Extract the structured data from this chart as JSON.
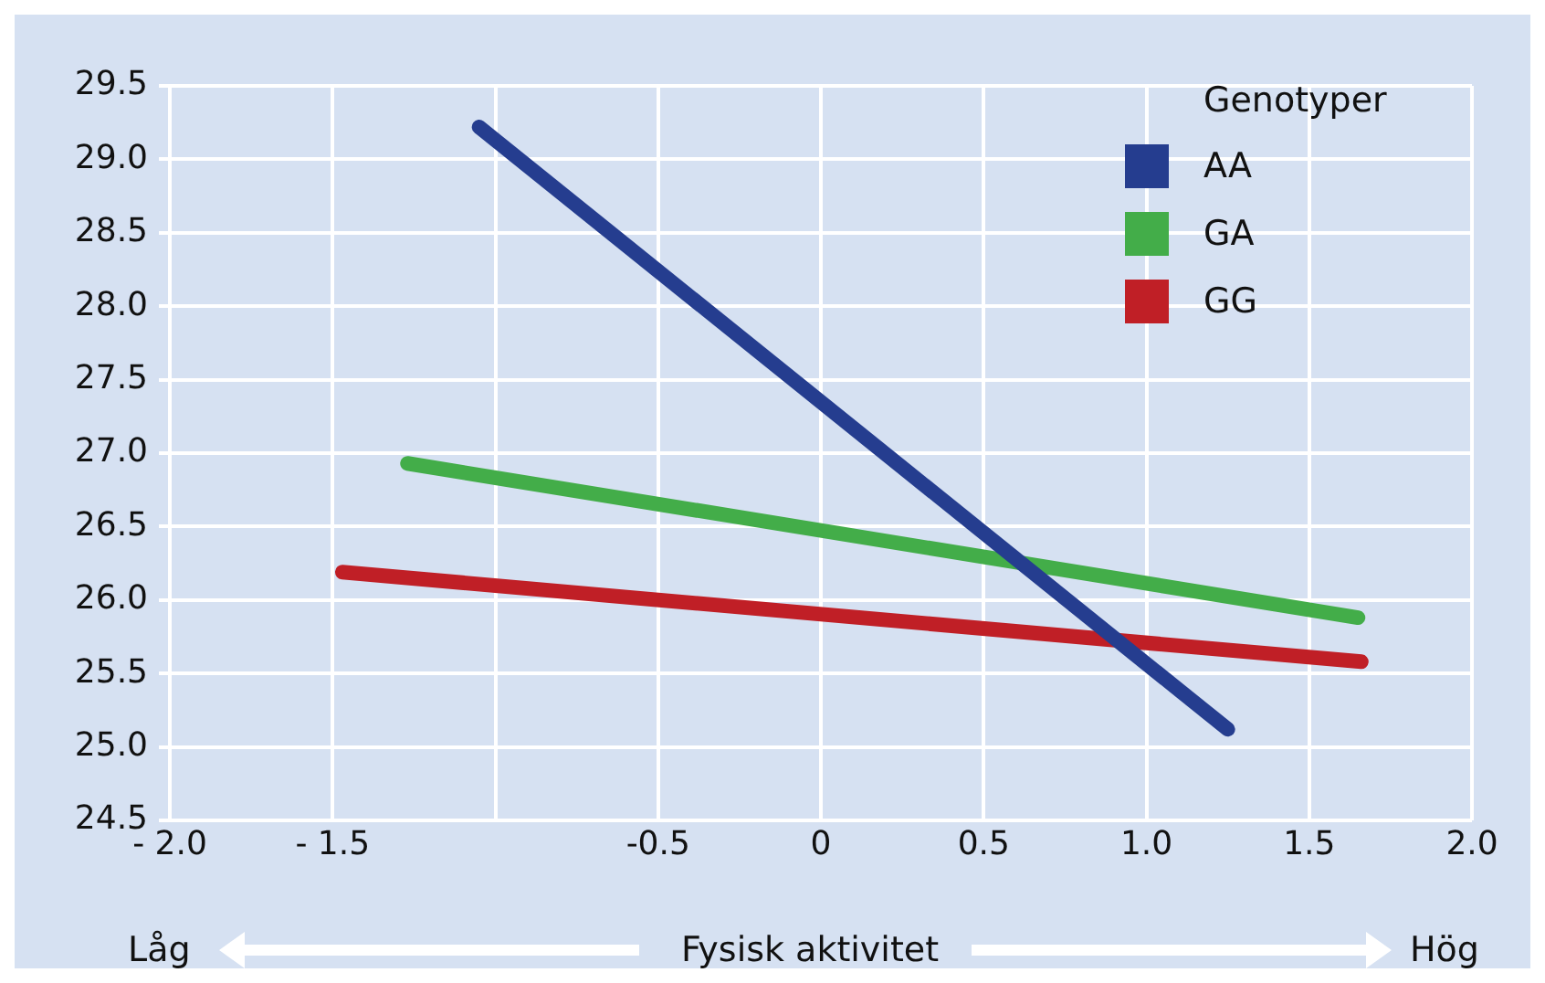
{
  "chart_data": {
    "type": "line",
    "xlabel": "Fysisk aktivitet",
    "legend_title": "Genotyper",
    "legend": "top right",
    "grid": true,
    "marker": "none",
    "line_style": "solid",
    "annotations": [
      "Låg",
      "Hög"
    ],
    "xlim": [
      -2.0,
      2.0
    ],
    "xticks": [
      {
        "value": -2.0,
        "label": "- 2.0"
      },
      {
        "value": -1.5,
        "label": "- 1.5"
      },
      {
        "value": -1.0,
        "label": null
      },
      -0.5,
      0,
      0.5,
      {
        "value": 1.0,
        "label": "1.0"
      },
      1.5,
      {
        "value": 2.0,
        "label": "2.0"
      }
    ],
    "ylim": [
      24.5,
      29.5
    ],
    "yticks": [
      24.5,
      {
        "value": 25.0,
        "label": "25.0"
      },
      25.5,
      {
        "value": 26.0,
        "label": "26.0"
      },
      26.5,
      {
        "value": 27.0,
        "label": "27.0"
      },
      27.5,
      {
        "value": 28.0,
        "label": "28.0"
      },
      28.5,
      {
        "value": 29.0,
        "label": "29.0"
      },
      29.5
    ],
    "series": [
      {
        "name": "AA",
        "color": "#253d8f",
        "x": [
          -1.05,
          1.25
        ],
        "values": [
          29.22,
          25.12
        ]
      },
      {
        "name": "GA",
        "color": "#43ad49",
        "x": [
          -1.27,
          1.65
        ],
        "values": [
          26.93,
          25.88
        ]
      },
      {
        "name": "GG",
        "color": "#c01f26",
        "x": [
          -1.47,
          1.66
        ],
        "values": [
          26.19,
          25.58
        ]
      }
    ]
  }
}
